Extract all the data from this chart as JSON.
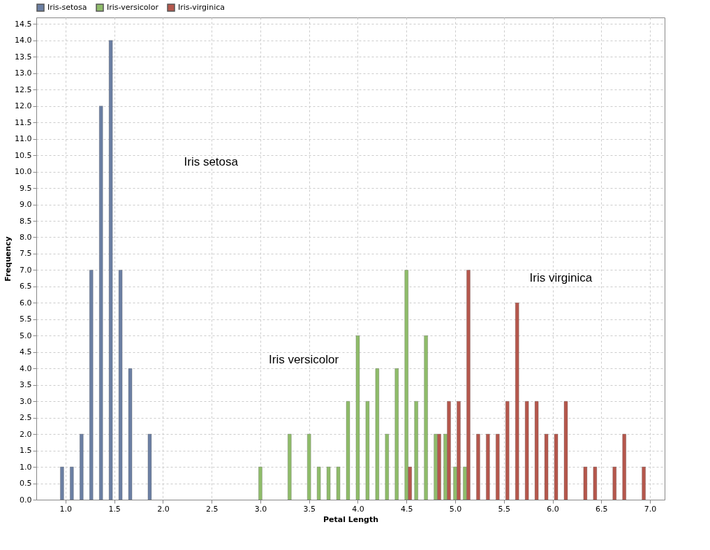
{
  "chart_data": {
    "type": "bar",
    "xlabel": "Petal Length",
    "ylabel": "Frequency",
    "series": [
      {
        "name": "Iris-setosa",
        "color": "#6b7fa3",
        "x": [
          1.0,
          1.1,
          1.2,
          1.3,
          1.4,
          1.5,
          1.6,
          1.7,
          1.9
        ],
        "values": [
          1,
          1,
          2,
          7,
          12,
          14,
          7,
          4,
          2
        ]
      },
      {
        "name": "Iris-versicolor",
        "color": "#8fbc6a",
        "x": [
          3.0,
          3.3,
          3.5,
          3.6,
          3.7,
          3.8,
          3.9,
          4.0,
          4.1,
          4.2,
          4.3,
          4.4,
          4.5,
          4.6,
          4.7,
          4.8,
          4.9,
          5.0,
          5.1
        ],
        "values": [
          1,
          2,
          2,
          1,
          1,
          1,
          3,
          5,
          3,
          4,
          2,
          4,
          7,
          3,
          5,
          2,
          2,
          1,
          1
        ]
      },
      {
        "name": "Iris-virginica",
        "color": "#b5574c",
        "x": [
          4.5,
          4.8,
          4.9,
          5.0,
          5.1,
          5.2,
          5.3,
          5.4,
          5.5,
          5.6,
          5.7,
          5.8,
          5.9,
          6.0,
          6.1,
          6.3,
          6.4,
          6.6,
          6.7,
          6.9
        ],
        "values": [
          1,
          2,
          3,
          3,
          7,
          2,
          2,
          2,
          3,
          6,
          3,
          3,
          2,
          2,
          3,
          1,
          1,
          1,
          2,
          1
        ]
      }
    ],
    "xlim": [
      0.7,
      7.15
    ],
    "xticks": [
      {
        "value": 1,
        "label": "1.0"
      },
      {
        "value": 1.5,
        "label": "1.5"
      },
      {
        "value": 2,
        "label": "2.0"
      },
      {
        "value": 2.5,
        "label": "2.5"
      },
      {
        "value": 3,
        "label": "3.0"
      },
      {
        "value": 3.5,
        "label": "3.5"
      },
      {
        "value": 4,
        "label": "4.0"
      },
      {
        "value": 4.5,
        "label": "4.5"
      },
      {
        "value": 5,
        "label": "5.0"
      },
      {
        "value": 5.5,
        "label": "5.5"
      },
      {
        "value": 6,
        "label": "6.0"
      },
      {
        "value": 6.5,
        "label": "6.5"
      },
      {
        "value": 7,
        "label": "7.0"
      }
    ],
    "ylim": [
      0,
      14.7
    ],
    "yticks": [
      {
        "value": 0,
        "label": "0.0"
      },
      {
        "value": 0.5,
        "label": "0.5"
      },
      {
        "value": 1,
        "label": "1.0"
      },
      {
        "value": 1.5,
        "label": "1.5"
      },
      {
        "value": 2,
        "label": "2.0"
      },
      {
        "value": 2.5,
        "label": "2.5"
      },
      {
        "value": 3,
        "label": "3.0"
      },
      {
        "value": 3.5,
        "label": "3.5"
      },
      {
        "value": 4,
        "label": "4.0"
      },
      {
        "value": 4.5,
        "label": "4.5"
      },
      {
        "value": 5,
        "label": "5.0"
      },
      {
        "value": 5.5,
        "label": "5.5"
      },
      {
        "value": 6,
        "label": "6.0"
      },
      {
        "value": 6.5,
        "label": "6.5"
      },
      {
        "value": 7,
        "label": "7.0"
      },
      {
        "value": 7.5,
        "label": "7.5"
      },
      {
        "value": 8,
        "label": "8.0"
      },
      {
        "value": 8.5,
        "label": "8.5"
      },
      {
        "value": 9,
        "label": "9.0"
      },
      {
        "value": 9.5,
        "label": "9.5"
      },
      {
        "value": 10,
        "label": "10.0"
      },
      {
        "value": 10.5,
        "label": "10.5"
      },
      {
        "value": 11,
        "label": "11.0"
      },
      {
        "value": 11.5,
        "label": "11.5"
      },
      {
        "value": 12,
        "label": "12.0"
      },
      {
        "value": 12.5,
        "label": "12.5"
      },
      {
        "value": 13,
        "label": "13.0"
      },
      {
        "value": 13.5,
        "label": "13.5"
      },
      {
        "value": 14,
        "label": "14.0"
      },
      {
        "value": 14.5,
        "label": "14.5"
      }
    ],
    "grid": true,
    "legend": "top left",
    "annotations": [
      "Iris setosa",
      "Iris versicolor",
      "Iris virginica"
    ]
  }
}
